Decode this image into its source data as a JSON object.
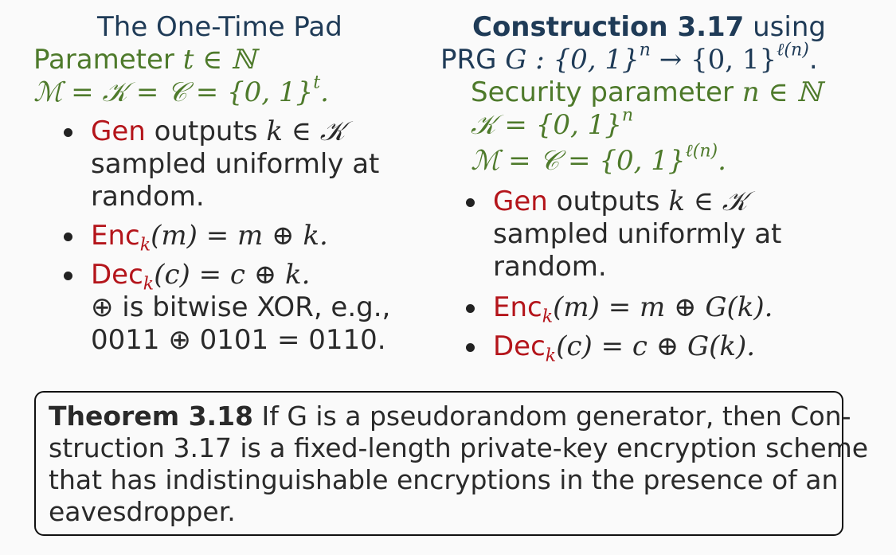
{
  "left": {
    "title": "The One-Time Pad",
    "param_label": "Parameter ",
    "param_math": "t ∈ ℕ",
    "spaces": "ℳ = 𝒦 = 𝒞 = {0, 1}",
    "spaces_sup": "t",
    "spaces_end": ".",
    "gen_word": "Gen",
    "gen_text": " outputs ",
    "gen_math": "k ∈ 𝒦",
    "gen_line2": "sampled uniformly at",
    "gen_line3": "random.",
    "enc_word": "Enc",
    "enc_sub": "k",
    "enc_math": "(m) = m ⊕ k.",
    "dec_word": "Dec",
    "dec_sub": "k",
    "dec_math": "(c) = c ⊕ k.",
    "xor_line1": "⊕ is bitwise XOR, e.g.,",
    "xor_line2": "0011 ⊕ 0101 = 0110."
  },
  "right": {
    "title_bold": "Construction 3.17",
    "title_rest": " using",
    "prg_label": "PRG ",
    "prg_math": "G : {0, 1}",
    "prg_sup1": "n",
    "prg_arrow": " → {0, 1}",
    "prg_sup2": "ℓ(n)",
    "prg_end": ".",
    "sec_label": "Security parameter ",
    "sec_math": "n ∈ ℕ",
    "key_math": "𝒦 = {0, 1}",
    "key_sup": "n",
    "msg_math": "ℳ = 𝒞 = {0, 1}",
    "msg_sup": "ℓ(n)",
    "msg_end": ".",
    "gen_word": "Gen",
    "gen_text": " outputs ",
    "gen_math": "k ∈ 𝒦",
    "gen_line2": "sampled uniformly at",
    "gen_line3": "random.",
    "enc_word": "Enc",
    "enc_sub": "k",
    "enc_math": "(m) = m ⊕ G(k).",
    "dec_word": "Dec",
    "dec_sub": "k",
    "dec_math": "(c) = c ⊕ G(k)."
  },
  "theorem": {
    "label": "Theorem 3.18",
    "line1": " If G is a pseudorandom generator, then Con-",
    "line2": "struction 3.17 is a fixed-length private-key encryption scheme",
    "line3": "that has indistinguishable encryptions in the presence of an",
    "line4": "eavesdropper."
  },
  "colors": {
    "green": "#4e7a2b",
    "red": "#b4151b",
    "title_blue": "#1f3b57",
    "background": "#fafafa"
  }
}
